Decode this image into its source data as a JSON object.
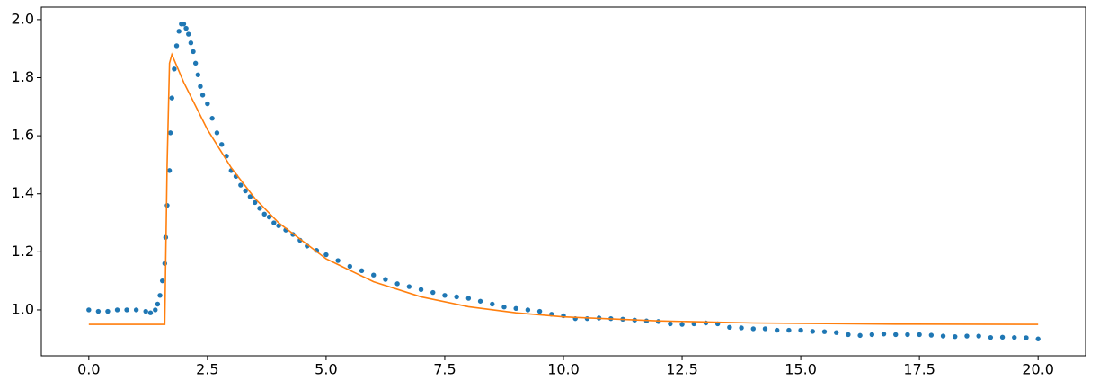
{
  "chart_data": {
    "type": "scatter",
    "xlim": [
      -1,
      21
    ],
    "ylim": [
      0.842,
      2.043
    ],
    "xticks": [
      {
        "value": 0,
        "label": "0.0"
      },
      2.5,
      {
        "value": 5,
        "label": "5.0"
      },
      7.5,
      {
        "value": 10,
        "label": "10.0"
      },
      12.5,
      {
        "value": 15,
        "label": "15.0"
      },
      17.5,
      {
        "value": 20,
        "label": "20.0"
      }
    ],
    "yticks": [
      {
        "value": 1,
        "label": "1.0"
      },
      1.2,
      1.4,
      1.6,
      1.8,
      {
        "value": 2,
        "label": "2.0"
      }
    ],
    "series": [
      {
        "kind": "dots",
        "color": "#1f77b4",
        "x": [
          0,
          0.2,
          0.4,
          0.6,
          0.8,
          1.0,
          1.2,
          1.3,
          1.4,
          1.45,
          1.5,
          1.55,
          1.6,
          1.62,
          1.65,
          1.7,
          1.72,
          1.75,
          1.8,
          1.85,
          1.9,
          1.95,
          2.0,
          2.05,
          2.1,
          2.15,
          2.2,
          2.25,
          2.3,
          2.35,
          2.4,
          2.5,
          2.6,
          2.7,
          2.8,
          2.9,
          3.0,
          3.1,
          3.2,
          3.3,
          3.4,
          3.5,
          3.6,
          3.7,
          3.8,
          3.9,
          4.0,
          4.15,
          4.3,
          4.45,
          4.6,
          4.8,
          5.0,
          5.25,
          5.5,
          5.75,
          6.0,
          6.25,
          6.5,
          6.75,
          7.0,
          7.25,
          7.5,
          7.75,
          8.0,
          8.25,
          8.5,
          8.75,
          9.0,
          9.25,
          9.5,
          9.75,
          10.0,
          10.25,
          10.5,
          10.75,
          11.0,
          11.25,
          11.5,
          11.75,
          12.0,
          12.25,
          12.5,
          12.75,
          13.0,
          13.25,
          13.5,
          13.75,
          14.0,
          14.25,
          14.5,
          14.75,
          15.0,
          15.25,
          15.5,
          15.75,
          16.0,
          16.25,
          16.5,
          16.75,
          17.0,
          17.25,
          17.5,
          17.75,
          18.0,
          18.25,
          18.5,
          18.75,
          19.0,
          19.25,
          19.5,
          19.75,
          20.0
        ],
        "y": [
          1.0,
          0.995,
          0.995,
          1.0,
          1.0,
          1.0,
          0.995,
          0.99,
          1.0,
          1.02,
          1.05,
          1.1,
          1.16,
          1.25,
          1.36,
          1.48,
          1.61,
          1.73,
          1.83,
          1.91,
          1.96,
          1.985,
          1.985,
          1.97,
          1.95,
          1.92,
          1.89,
          1.85,
          1.81,
          1.77,
          1.74,
          1.71,
          1.66,
          1.61,
          1.57,
          1.53,
          1.48,
          1.46,
          1.43,
          1.41,
          1.39,
          1.37,
          1.35,
          1.33,
          1.32,
          1.3,
          1.29,
          1.275,
          1.26,
          1.24,
          1.22,
          1.205,
          1.19,
          1.17,
          1.15,
          1.135,
          1.12,
          1.105,
          1.09,
          1.08,
          1.07,
          1.06,
          1.05,
          1.045,
          1.04,
          1.03,
          1.02,
          1.01,
          1.005,
          1.0,
          0.995,
          0.985,
          0.98,
          0.97,
          0.97,
          0.972,
          0.97,
          0.968,
          0.965,
          0.962,
          0.96,
          0.952,
          0.95,
          0.952,
          0.955,
          0.952,
          0.94,
          0.938,
          0.935,
          0.935,
          0.93,
          0.93,
          0.93,
          0.926,
          0.925,
          0.922,
          0.915,
          0.912,
          0.915,
          0.917,
          0.915,
          0.915,
          0.915,
          0.913,
          0.91,
          0.908,
          0.91,
          0.91,
          0.905,
          0.906,
          0.905,
          0.904,
          0.9
        ]
      },
      {
        "kind": "line",
        "color": "#ff7f0e",
        "x": [
          0,
          1.6,
          1.65,
          1.7,
          1.75,
          2.0,
          2.5,
          3.0,
          3.5,
          4.0,
          5.0,
          6.0,
          7.0,
          8.0,
          9.0,
          10.0,
          12.0,
          14.0,
          17.0,
          20.0
        ],
        "y": [
          0.95,
          0.95,
          1.5,
          1.85,
          1.88,
          1.784,
          1.621,
          1.49,
          1.384,
          1.3,
          1.176,
          1.097,
          1.045,
          1.011,
          0.99,
          0.976,
          0.962,
          0.955,
          0.951,
          0.95
        ]
      }
    ]
  }
}
